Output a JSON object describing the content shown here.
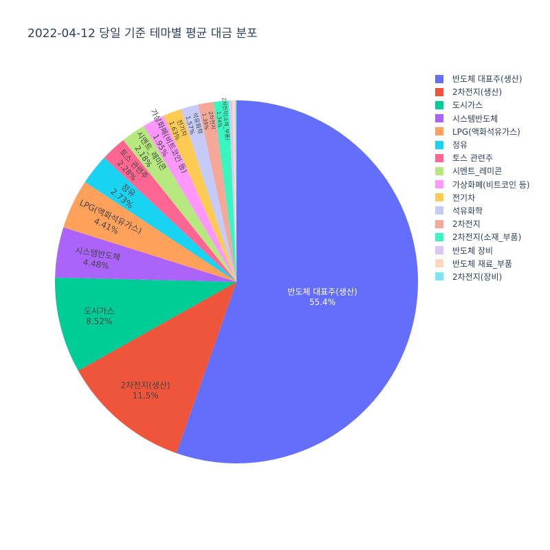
{
  "chart_data": {
    "type": "pie",
    "title": "2022-04-12 당일 기준 테마별 평균 대금 분포",
    "direction": "clockwise",
    "start": "top",
    "legend_position": "right",
    "slices": [
      {
        "label": "반도체 대표주(생산)",
        "value": 55.4,
        "text": "55.4%",
        "color": "#636efa"
      },
      {
        "label": "2차전지(생산)",
        "value": 11.5,
        "text": "11.5%",
        "color": "#EF553B"
      },
      {
        "label": "도시가스",
        "value": 8.52,
        "text": "8.52%",
        "color": "#00cc96"
      },
      {
        "label": "시스템반도체",
        "value": 4.48,
        "text": "4.48%",
        "color": "#ab63fa"
      },
      {
        "label": "LPG(액화석유가스)",
        "value": 4.41,
        "text": "4.41%",
        "color": "#FFA15A"
      },
      {
        "label": "정유",
        "value": 2.73,
        "text": "2.73%",
        "color": "#19d3f3"
      },
      {
        "label": "토스 관련주",
        "value": 2.28,
        "text": "2.28%",
        "color": "#FF6692"
      },
      {
        "label": "시멘트_레미콘",
        "value": 2.18,
        "text": "2.18%",
        "color": "#B6E880"
      },
      {
        "label": "가상화폐(비트코인 등)",
        "value": 1.95,
        "text": "1.95%",
        "color": "#FF97FF"
      },
      {
        "label": "전기차",
        "value": 1.63,
        "text": "1.63%",
        "color": "#FECB52"
      },
      {
        "label": "석유화학",
        "value": 1.57,
        "text": "1.57%",
        "color": "#c6caf7"
      },
      {
        "label": "2차전지",
        "value": 1.39,
        "text": "1.39%",
        "color": "#f5a897"
      },
      {
        "label": "2차전지(소재_부품)",
        "value": 1.34,
        "text": "1.34%",
        "color": "#39f5c0"
      },
      {
        "label": "반도체 장비",
        "value": 0.3,
        "text": "",
        "color": "#dcc6f7"
      },
      {
        "label": "반도체 재료_부품",
        "value": 0.25,
        "text": "",
        "color": "#ffd9bf"
      },
      {
        "label": "2차전지(장비)",
        "value": 0.12,
        "text": "",
        "color": "#7be4f7"
      }
    ]
  }
}
